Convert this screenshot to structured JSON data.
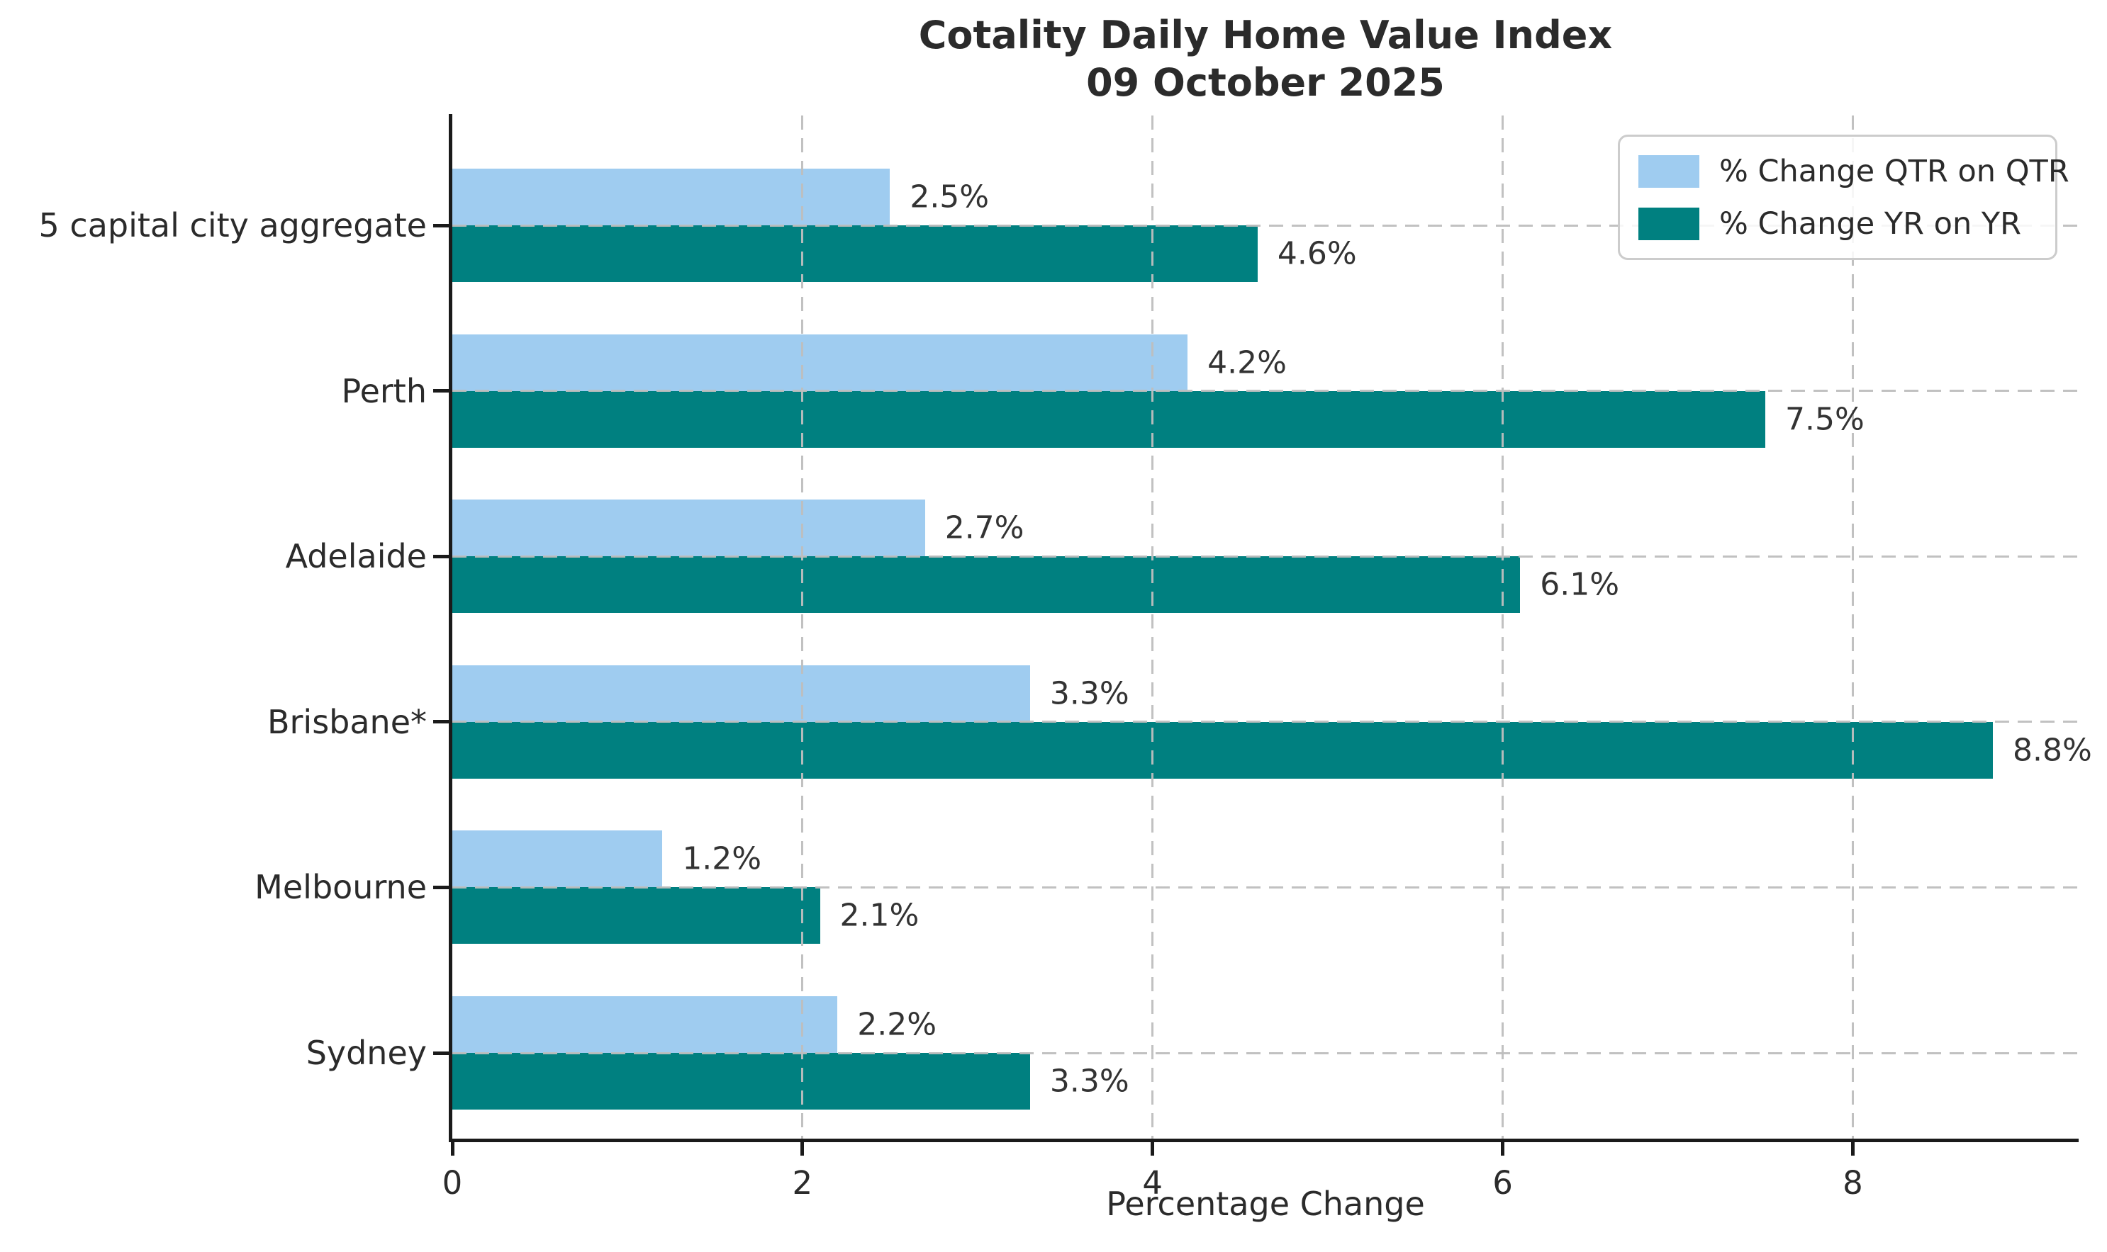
{
  "title": {
    "line1": "Cotality Daily Home Value Index",
    "line2": "09 October 2025"
  },
  "chart_data": {
    "type": "bar",
    "orientation": "horizontal",
    "title": "Cotality Daily Home Value Index — 09 October 2025",
    "categories": [
      "5 capital city aggregate",
      "Perth",
      "Adelaide",
      "Brisbane*",
      "Melbourne",
      "Sydney"
    ],
    "series": [
      {
        "name": "% Change QTR on QTR",
        "color": "#9fccf0",
        "values": [
          2.5,
          4.2,
          2.7,
          3.3,
          1.2,
          2.2
        ],
        "labels": [
          "2.5%",
          "4.2%",
          "2.7%",
          "3.3%",
          "1.2%",
          "2.2%"
        ]
      },
      {
        "name": "% Change YR on YR",
        "color": "#008080",
        "values": [
          4.6,
          7.5,
          6.1,
          8.8,
          2.1,
          3.3
        ],
        "labels": [
          "4.6%",
          "7.5%",
          "6.1%",
          "8.8%",
          "2.1%",
          "3.3%"
        ]
      }
    ],
    "xlabel": "Percentage Change",
    "ylabel": "",
    "xlim": [
      0,
      9.29
    ],
    "xticks": [
      0,
      2,
      4,
      6,
      8
    ],
    "grid": {
      "style": "dashed",
      "color": "#c7c7c7",
      "axes": "both"
    },
    "legend": {
      "position": "upper right",
      "labels": [
        "% Change QTR on QTR",
        "% Change YR on YR"
      ]
    }
  },
  "colors": {
    "qtr_bar": "#9fccf0",
    "yr_bar": "#008080",
    "text": "#2b2b2b",
    "axis": "#1a1a1a",
    "grid": "#c7c7c7",
    "legend_border": "#cccccc",
    "background": "#ffffff"
  }
}
